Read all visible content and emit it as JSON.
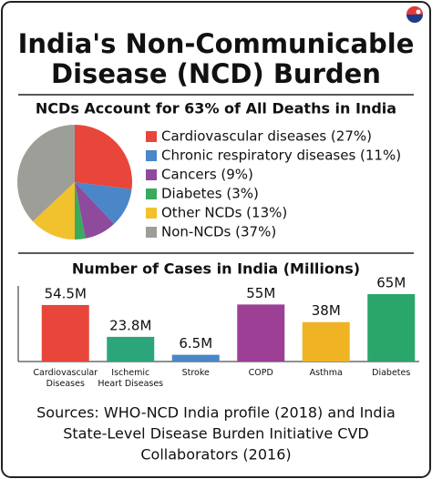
{
  "title": [
    "India's Non-Communicable",
    "Disease (NCD) Burden"
  ],
  "sources": [
    "Sources: WHO-NCD India profile (2018) and India",
    "State-Level Disease Burden Initiative CVD",
    "Collaborators (2016)"
  ],
  "chart_data": [
    {
      "type": "pie",
      "title": "NCDs Account for 63% of All Deaths in India",
      "categories": [
        "Cardiovascular diseases (27%)",
        "Chronic respiratory diseases (11%)",
        "Cancers (9%)",
        "Diabetes (3%)",
        "Other NCDs (13%)",
        "Non-NCDs (37%)"
      ],
      "values": [
        27,
        11,
        9,
        3,
        13,
        37
      ],
      "colors": [
        "#e8463a",
        "#4a86c8",
        "#8e4a9c",
        "#3aaa5c",
        "#f2c12e",
        "#9e9e98"
      ]
    },
    {
      "type": "bar",
      "title": "Number of Cases in India (Millions)",
      "categories": [
        "Cardiovascular\nDiseases",
        "Ischemic\nHeart Diseases",
        "Stroke",
        "COPD",
        "Asthma",
        "Diabetes"
      ],
      "values": [
        54.5,
        23.8,
        6.5,
        55,
        38,
        65
      ],
      "value_labels": [
        "54.5M",
        "23.8M",
        "6.5M",
        "55M",
        "38M",
        "65M"
      ],
      "colors": [
        "#e8463a",
        "#2aa67a",
        "#4a86c8",
        "#9c3f95",
        "#f0b323",
        "#2aa66a"
      ]
    }
  ]
}
